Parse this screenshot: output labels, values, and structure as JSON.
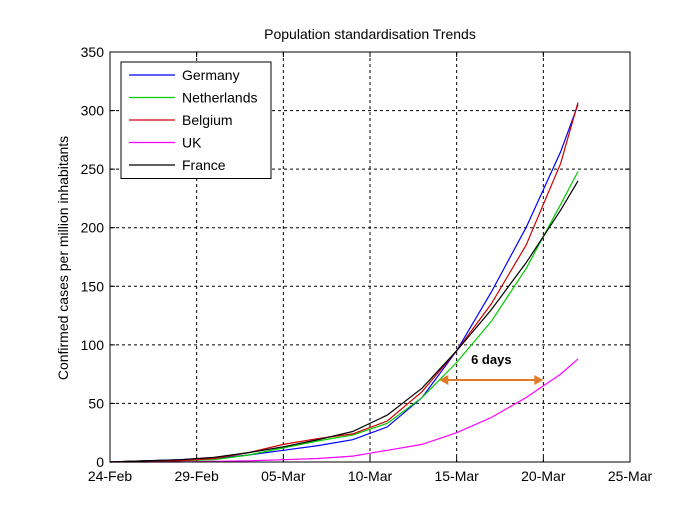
{
  "chart_data": {
    "type": "line",
    "title": "Population standardisation Trends",
    "ylabel": "Confirmed cases per million inhabitants",
    "xlabel": "",
    "x_ticks": [
      "24-Feb",
      "29-Feb",
      "05-Mar",
      "10-Mar",
      "15-Mar",
      "20-Mar",
      "25-Mar"
    ],
    "y_ticks": [
      0,
      50,
      100,
      150,
      200,
      250,
      300,
      350
    ],
    "ylim": [
      0,
      350
    ],
    "xlim": [
      "24-Feb",
      "25-Mar"
    ],
    "grid": true,
    "legend_position": "top-left",
    "series": [
      {
        "name": "Germany",
        "color": "#0000ff",
        "x": [
          "24-Feb",
          "26-Feb",
          "28-Feb",
          "01-Mar",
          "03-Mar",
          "05-Mar",
          "07-Mar",
          "09-Mar",
          "11-Mar",
          "13-Mar",
          "15-Mar",
          "17-Mar",
          "19-Mar",
          "21-Mar",
          "22-Mar"
        ],
        "y": [
          0,
          1,
          2,
          3,
          6,
          10,
          14,
          19,
          30,
          55,
          95,
          145,
          200,
          265,
          305
        ]
      },
      {
        "name": "Netherlands",
        "color": "#00cc00",
        "x": [
          "24-Feb",
          "26-Feb",
          "28-Feb",
          "01-Mar",
          "03-Mar",
          "05-Mar",
          "07-Mar",
          "09-Mar",
          "11-Mar",
          "13-Mar",
          "15-Mar",
          "17-Mar",
          "19-Mar",
          "21-Mar",
          "22-Mar"
        ],
        "y": [
          0,
          0,
          1,
          2,
          6,
          12,
          18,
          23,
          33,
          55,
          85,
          120,
          165,
          220,
          248
        ]
      },
      {
        "name": "Belgium",
        "color": "#cc0000",
        "x": [
          "24-Feb",
          "26-Feb",
          "28-Feb",
          "01-Mar",
          "03-Mar",
          "05-Mar",
          "07-Mar",
          "09-Mar",
          "11-Mar",
          "13-Mar",
          "15-Mar",
          "17-Mar",
          "19-Mar",
          "21-Mar",
          "22-Mar"
        ],
        "y": [
          0,
          1,
          1,
          3,
          8,
          15,
          20,
          24,
          35,
          60,
          95,
          135,
          185,
          255,
          307
        ]
      },
      {
        "name": "UK",
        "color": "#ff00ff",
        "x": [
          "24-Feb",
          "26-Feb",
          "28-Feb",
          "01-Mar",
          "03-Mar",
          "05-Mar",
          "07-Mar",
          "09-Mar",
          "11-Mar",
          "13-Mar",
          "15-Mar",
          "17-Mar",
          "19-Mar",
          "21-Mar",
          "22-Mar"
        ],
        "y": [
          0,
          0,
          0,
          0.5,
          1,
          2,
          3,
          5,
          10,
          15,
          25,
          38,
          55,
          75,
          88
        ]
      },
      {
        "name": "France",
        "color": "#000000",
        "x": [
          "24-Feb",
          "26-Feb",
          "28-Feb",
          "01-Mar",
          "03-Mar",
          "05-Mar",
          "07-Mar",
          "09-Mar",
          "11-Mar",
          "13-Mar",
          "15-Mar",
          "17-Mar",
          "19-Mar",
          "21-Mar",
          "22-Mar"
        ],
        "y": [
          0,
          1,
          2,
          4,
          8,
          13,
          19,
          26,
          40,
          63,
          95,
          130,
          170,
          215,
          240
        ]
      }
    ],
    "annotations": [
      {
        "text": "6 days",
        "type": "double-arrow",
        "color": "#e07a28",
        "from_x": "14-Mar",
        "to_x": "20-Mar",
        "y": 70
      }
    ]
  }
}
